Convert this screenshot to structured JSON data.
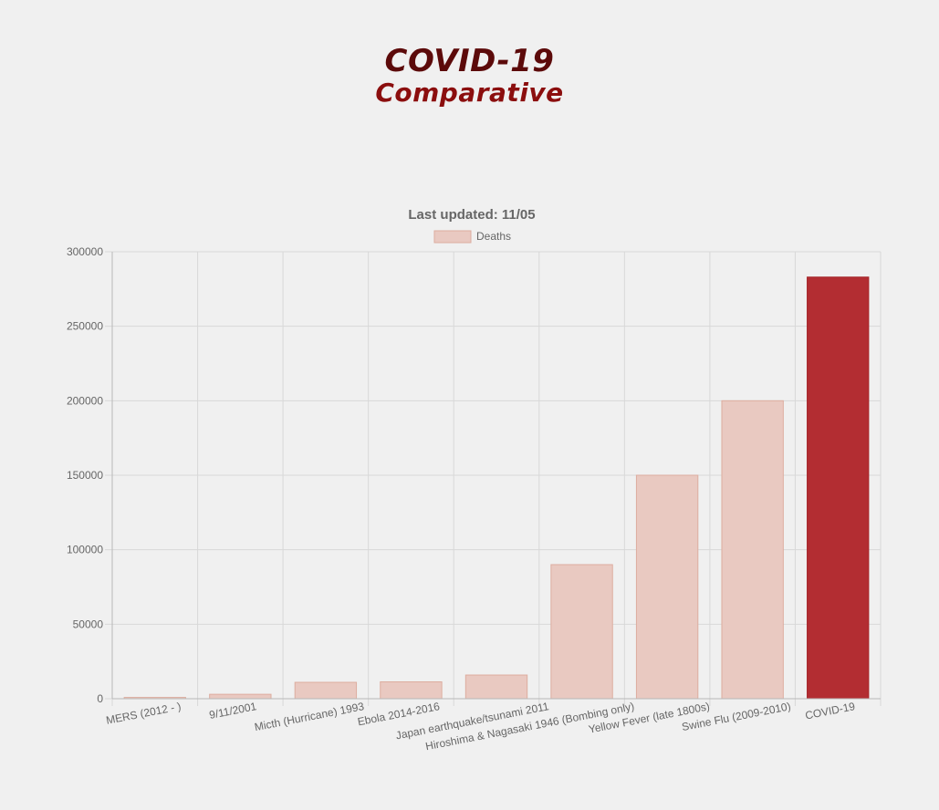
{
  "header": {
    "title": "COVID-19",
    "subtitle": "Comparative"
  },
  "chart_data": {
    "type": "bar",
    "title": "Last updated: 11/05",
    "categories": [
      "MERS (2012 - )",
      "9/11/2001",
      "Micth (Hurricane) 1993",
      "Ebola 2014-2016",
      "Japan earthquake/tsunami 2011",
      "Hiroshima & Nagasaki 1946 (Bombing only)",
      "Yellow Fever (late 1800s)",
      "Swine Flu (2009-2010)",
      "COVID-19"
    ],
    "series": [
      {
        "name": "Deaths",
        "values": [
          858,
          2977,
          11000,
          11325,
          15899,
          90000,
          150000,
          200000,
          283000
        ]
      }
    ],
    "ylim": [
      0,
      300000
    ],
    "yticks": [
      0,
      50000,
      100000,
      150000,
      200000,
      250000,
      300000
    ],
    "grid": true,
    "legend_position": "top",
    "colors": {
      "bar_fill": "#e9c9c1",
      "bar_border": "#ddad9f",
      "highlight_fill": "#b32d32",
      "highlight_border": "#a52428",
      "grid": "#d8d8d8",
      "axis": "#b8b8b8",
      "tick_text": "#666666",
      "title_text": "#666666"
    },
    "highlight_category": "COVID-19"
  }
}
